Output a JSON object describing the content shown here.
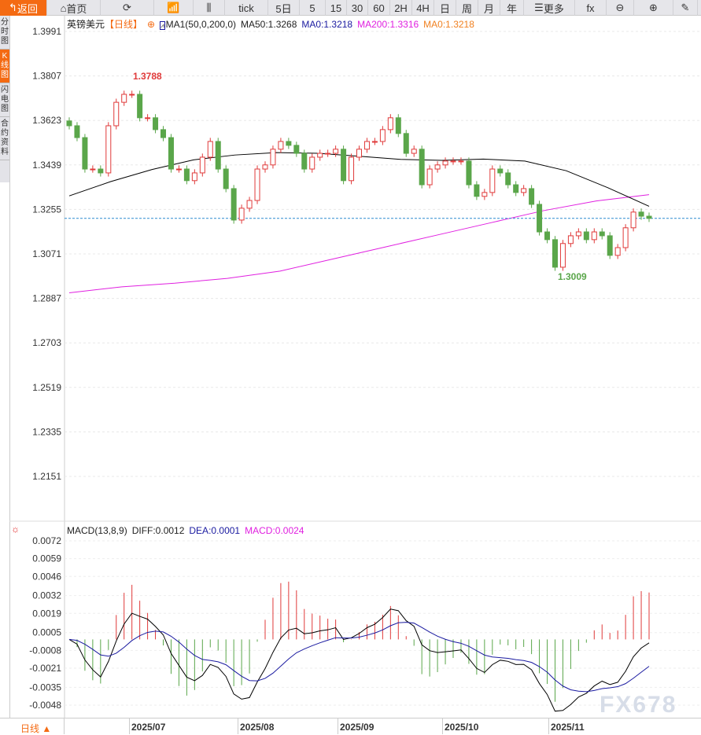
{
  "toolbar": {
    "items": [
      "返回",
      "首页",
      "",
      "",
      "",
      "tick",
      "5日",
      "5",
      "15",
      "30",
      "60",
      "2H",
      "4H",
      "日",
      "周",
      "月",
      "年",
      "更多",
      "fx",
      "",
      "",
      ""
    ]
  },
  "left_tabs": [
    "分时图",
    "K线图",
    "闪电图",
    "合约资料"
  ],
  "legend": {
    "symbol": "英镑美元",
    "period": "【日线】",
    "ma_name": "MA1(50,0,200,0)",
    "ma50": "MA50:1.3268",
    "ma0": "MA0:1.3218",
    "ma200": "MA200:1.3316",
    "ma0b": "MA0:1.3218"
  },
  "macd_legend": {
    "name": "MACD(13,8,9)",
    "diff": "DIFF:0.0012",
    "dea": "DEA:0.0001",
    "macd": "MACD:0.0024"
  },
  "bottom": {
    "period": "日线 ▲",
    "months": [
      "2025/07",
      "2025/08",
      "2025/09",
      "2025/10",
      "2025/11"
    ]
  },
  "watermark": "FX678",
  "colors": {
    "up": "#e03a3a",
    "down": "#5aa64a",
    "ma50": "#000000",
    "ma200": "#e020e0",
    "accent": "#f46a12",
    "dea": "#1a1aa0",
    "price_line": "#2a8ad0"
  },
  "chart_data": {
    "type": "candlestick",
    "symbol": "GBP/USD",
    "price_ticks": [
      "1.3991",
      "1.3807",
      "1.3623",
      "1.3439",
      "1.3255",
      "1.3071",
      "1.2887",
      "1.2703",
      "1.2519",
      "1.2335",
      "1.2151"
    ],
    "ylim": [
      1.2151,
      1.3991
    ],
    "high_label": "1.3788",
    "low_label": "1.3009",
    "current_price": 1.3218,
    "closes": [
      1.3601,
      1.3552,
      1.3422,
      1.3422,
      1.3406,
      1.3601,
      1.3698,
      1.3731,
      1.3731,
      1.3634,
      1.3634,
      1.3585,
      1.3552,
      1.3422,
      1.3422,
      1.3374,
      1.3406,
      1.3471,
      1.3536,
      1.3422,
      1.3341,
      1.3211,
      1.326,
      1.3292,
      1.3422,
      1.3439,
      1.3504,
      1.3536,
      1.352,
      1.3487,
      1.3422,
      1.3471,
      1.3487,
      1.3487,
      1.3504,
      1.3374,
      1.3471,
      1.3504,
      1.3536,
      1.3536,
      1.3585,
      1.3634,
      1.3569,
      1.3487,
      1.3504,
      1.3357,
      1.3422,
      1.3439,
      1.3455,
      1.3455,
      1.3455,
      1.3357,
      1.3309,
      1.3325,
      1.3422,
      1.3406,
      1.3357,
      1.3325,
      1.3341,
      1.3276,
      1.3162,
      1.313,
      1.3016,
      1.3114,
      1.3146,
      1.3162,
      1.313,
      1.3162,
      1.3146,
      1.3065,
      1.3097,
      1.3179,
      1.3244,
      1.3227,
      1.3218
    ],
    "ma50": [
      1.3311,
      1.337,
      1.342,
      1.346,
      1.348,
      1.349,
      1.3487,
      1.3475,
      1.3462,
      1.3458,
      1.3463,
      1.3455,
      1.3415,
      1.3345,
      1.3268
    ],
    "ma200": [
      1.291,
      1.2935,
      1.295,
      1.297,
      1.3,
      1.305,
      1.31,
      1.315,
      1.32,
      1.325,
      1.329,
      1.3316
    ],
    "macd_ticks": [
      "0.0072",
      "0.0059",
      "0.0046",
      "0.0032",
      "0.0019",
      "0.0005",
      "-0.0008",
      "-0.0021",
      "-0.0035",
      "-0.0048"
    ],
    "macd_ylim": [
      -0.0055,
      0.0075
    ]
  }
}
